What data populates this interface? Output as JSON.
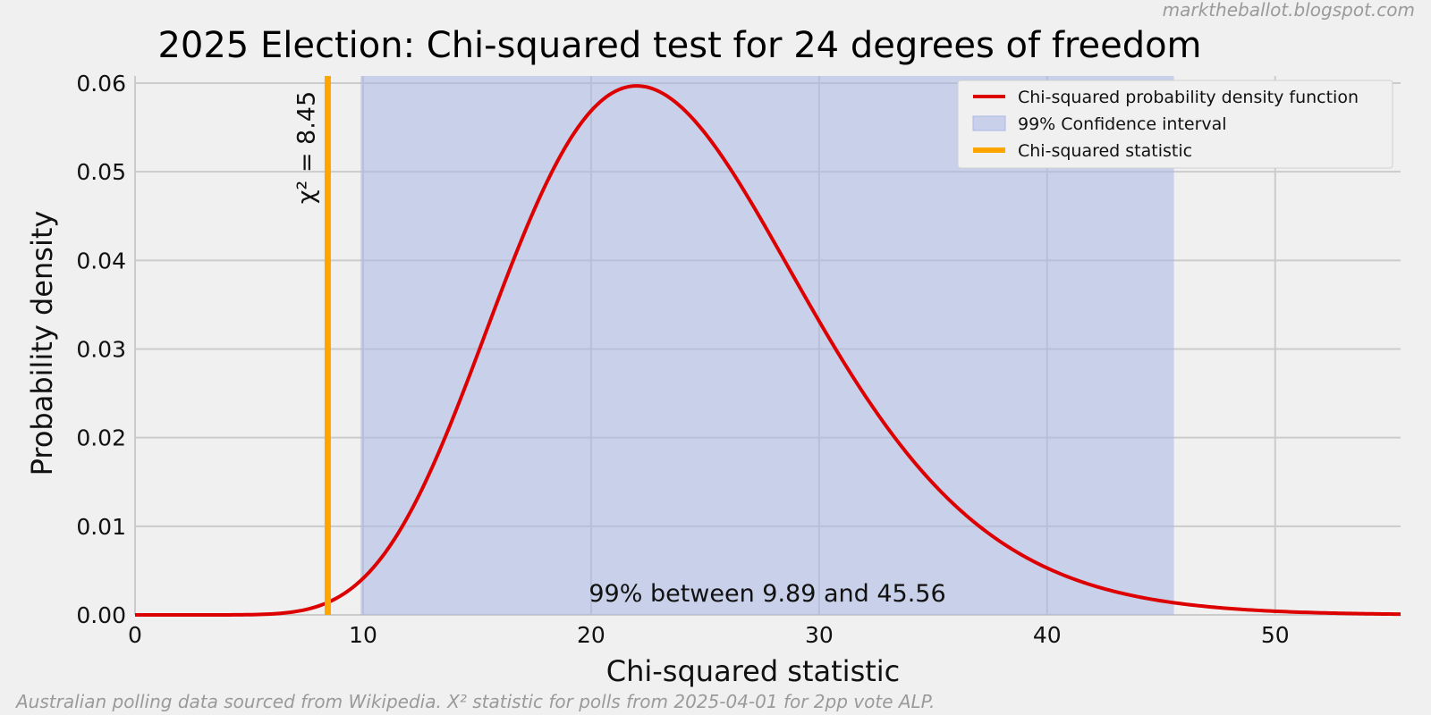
{
  "chart_data": {
    "type": "line",
    "title": "2025 Election: Chi-squared test for 24 degrees of freedom",
    "xlabel": "Chi-squared statistic",
    "ylabel": "Probability density",
    "xlim": [
      0,
      55.5
    ],
    "ylim": [
      0,
      0.06
    ],
    "x_ticks": [
      0,
      10,
      20,
      30,
      40,
      50
    ],
    "y_ticks": [
      "0.00",
      "0.01",
      "0.02",
      "0.03",
      "0.04",
      "0.05",
      "0.06"
    ],
    "grid": true,
    "legend_position": "top-right",
    "degrees_of_freedom": 24,
    "series": [
      {
        "name": "Chi-squared probability density function",
        "color": "#dd0000",
        "x": [
          0,
          4,
          6,
          8,
          10,
          12,
          14,
          16,
          18,
          20,
          22,
          24,
          26,
          28,
          30,
          32,
          34,
          36,
          38,
          40,
          42,
          44,
          46,
          48,
          50,
          52,
          55.5
        ],
        "y": [
          0,
          3e-05,
          0.00031,
          0.0018,
          0.0058,
          0.0137,
          0.0252,
          0.0385,
          0.0506,
          0.0584,
          0.0601,
          0.0566,
          0.0491,
          0.0397,
          0.0304,
          0.022,
          0.0152,
          0.0101,
          0.0064,
          0.004,
          0.0024,
          0.0014,
          0.0008,
          0.0004,
          0.0002,
          0.0001,
          3e-05
        ]
      }
    ],
    "confidence_interval": {
      "label": "99% Confidence interval",
      "low": 9.89,
      "high": 45.56,
      "color": "#aab8e6"
    },
    "statistic": {
      "label": "Chi-squared statistic",
      "value": 8.45,
      "color": "#ffa500",
      "annotation": "χ² = 8.45"
    },
    "interval_annotation": "99% between 9.89 and 45.56"
  },
  "watermark": "marktheballot.blogspot.com",
  "footnote": "Australian polling data sourced from Wikipedia. X² statistic for polls from 2025-04-01 for 2pp vote ALP."
}
